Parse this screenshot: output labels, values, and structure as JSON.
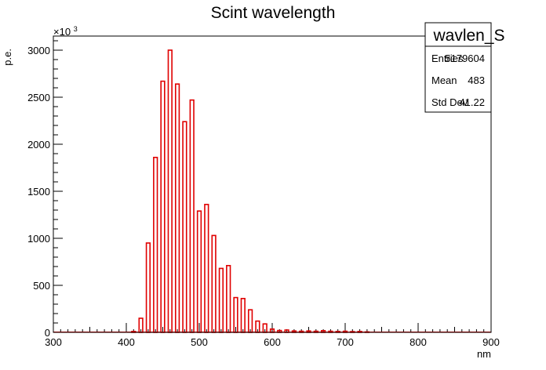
{
  "chart_data": {
    "type": "bar",
    "title": "Scint wavelength",
    "xlabel": "nm",
    "ylabel": "p.e.",
    "y_multiplier_label": "×10",
    "y_multiplier_exp": "3",
    "xlim": [
      300,
      900
    ],
    "ylim": [
      0,
      3150
    ],
    "x_ticks": [
      "300",
      "400",
      "500",
      "600",
      "700",
      "800",
      "900"
    ],
    "y_ticks": [
      "0",
      "500",
      "1000",
      "1500",
      "2000",
      "2500",
      "3000"
    ],
    "bin_width": 10,
    "line_color": "#e00000",
    "bins": [
      {
        "x": 410,
        "y": 10
      },
      {
        "x": 420,
        "y": 150
      },
      {
        "x": 430,
        "y": 950
      },
      {
        "x": 440,
        "y": 1860
      },
      {
        "x": 450,
        "y": 2670
      },
      {
        "x": 460,
        "y": 3000
      },
      {
        "x": 470,
        "y": 2640
      },
      {
        "x": 480,
        "y": 2240
      },
      {
        "x": 490,
        "y": 2470
      },
      {
        "x": 500,
        "y": 1290
      },
      {
        "x": 510,
        "y": 1360
      },
      {
        "x": 520,
        "y": 1030
      },
      {
        "x": 530,
        "y": 680
      },
      {
        "x": 540,
        "y": 710
      },
      {
        "x": 550,
        "y": 370
      },
      {
        "x": 560,
        "y": 360
      },
      {
        "x": 570,
        "y": 240
      },
      {
        "x": 580,
        "y": 120
      },
      {
        "x": 590,
        "y": 90
      },
      {
        "x": 600,
        "y": 35
      },
      {
        "x": 610,
        "y": 20
      },
      {
        "x": 620,
        "y": 25
      },
      {
        "x": 630,
        "y": 15
      },
      {
        "x": 640,
        "y": 12
      },
      {
        "x": 650,
        "y": 15
      },
      {
        "x": 660,
        "y": 12
      },
      {
        "x": 670,
        "y": 18
      },
      {
        "x": 680,
        "y": 12
      },
      {
        "x": 690,
        "y": 10
      },
      {
        "x": 700,
        "y": 12
      },
      {
        "x": 710,
        "y": 8
      },
      {
        "x": 720,
        "y": 10
      },
      {
        "x": 730,
        "y": 5
      }
    ],
    "stats": {
      "name": "wavlen_S",
      "rows": [
        {
          "label": "Entries",
          "value": "5179604"
        },
        {
          "label": "Mean",
          "value": "483"
        },
        {
          "label": "Std Dev",
          "value": "41.22"
        }
      ]
    }
  }
}
